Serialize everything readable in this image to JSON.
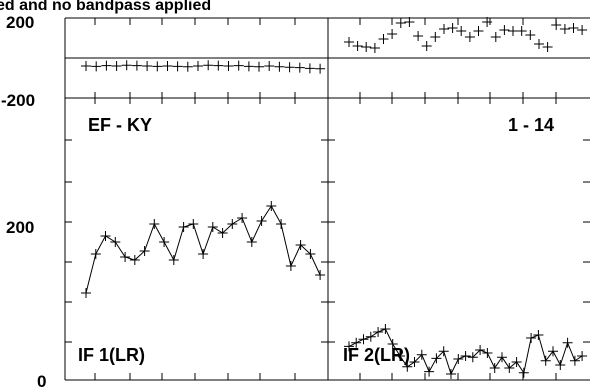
{
  "title_fragment": "ed and no bandpass applied",
  "chart_data": [
    {
      "type": "scatter",
      "panel": "phase-left",
      "y_tick_labels": [
        "200",
        "-200"
      ],
      "ylim": [
        -200,
        200
      ],
      "reference_line": 0,
      "points_y": [
        -40,
        -42,
        -38,
        -40,
        -36,
        -38,
        -40,
        -42,
        -40,
        -42,
        -44,
        -40,
        -36,
        -38,
        -40,
        -38,
        -42,
        -44,
        -40,
        -44,
        -46,
        -48,
        -52,
        -54
      ],
      "xlim": [
        0,
        1
      ],
      "x_start": 0.08,
      "x_end": 0.97
    },
    {
      "type": "scatter",
      "panel": "phase-right",
      "ylim": [
        -200,
        200
      ],
      "reference_line": 0,
      "points_y": [
        80,
        60,
        55,
        50,
        95,
        120,
        175,
        180,
        110,
        60,
        105,
        145,
        150,
        135,
        105,
        135,
        180,
        105,
        140,
        135,
        135,
        115,
        70,
        55,
        165,
        145,
        150,
        140
      ],
      "xlim": [
        0,
        1
      ],
      "x_start": 0.08,
      "x_end": 0.97
    },
    {
      "type": "line",
      "panel": "amp-left",
      "label": "EF - KY",
      "legend": "IF 1(LR)",
      "y_tick_labels": [
        "200",
        "0"
      ],
      "ylim": [
        0,
        470
      ],
      "values": [
        145,
        210,
        240,
        230,
        205,
        200,
        215,
        260,
        230,
        200,
        255,
        260,
        210,
        255,
        245,
        260,
        270,
        230,
        265,
        290,
        260,
        190,
        225,
        210,
        175
      ],
      "xlim": [
        0,
        1
      ],
      "x_start": 0.08,
      "x_end": 0.97
    },
    {
      "type": "line",
      "panel": "amp-right",
      "label": "1 - 14",
      "legend": "IF 2(LR)",
      "ylim": [
        0,
        470
      ],
      "values": [
        56,
        62,
        68,
        72,
        80,
        85,
        60,
        40,
        22,
        30,
        42,
        14,
        36,
        48,
        10,
        35,
        40,
        38,
        50,
        45,
        20,
        38,
        20,
        30,
        12,
        70,
        75,
        32,
        48,
        25,
        62,
        32,
        40
      ],
      "xlim": [
        0,
        1
      ],
      "x_start": 0.08,
      "x_end": 0.97
    }
  ]
}
